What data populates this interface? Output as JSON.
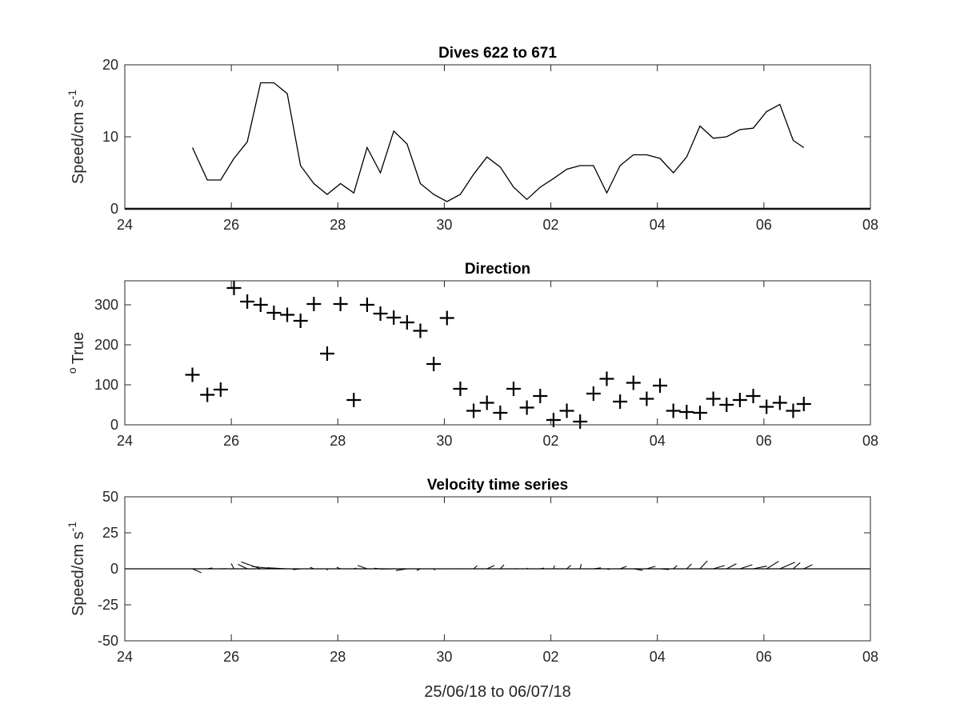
{
  "chart_data": [
    {
      "type": "line",
      "title": "Dives 622 to 671",
      "ylabel": "Speed/cm s",
      "ylabel_sup": "-1",
      "xlabel": "",
      "x_ticks": [
        "24",
        "26",
        "28",
        "30",
        "02",
        "04",
        "06",
        "08"
      ],
      "xlim": [
        24,
        38
      ],
      "y_ticks": [
        "0",
        "10",
        "20"
      ],
      "ylim": [
        0,
        20
      ],
      "grid": false,
      "baseline": 0,
      "series": [
        {
          "x": [
            25.27,
            25.55,
            25.8,
            26.05,
            26.3,
            26.55,
            26.8,
            27.05,
            27.3,
            27.55,
            27.8,
            28.05,
            28.3,
            28.55,
            28.8,
            29.05,
            29.3,
            29.55,
            29.8,
            30.05,
            30.3,
            30.55,
            30.8,
            31.05,
            31.3,
            31.55,
            31.8,
            32.05,
            32.3,
            32.55,
            32.8,
            33.05,
            33.3,
            33.55,
            33.8,
            34.05,
            34.3,
            34.55,
            34.8,
            35.05,
            35.3,
            35.55,
            35.8,
            36.05,
            36.3,
            36.55,
            36.75
          ],
          "y": [
            8.5,
            4.0,
            4.0,
            7.0,
            9.3,
            17.5,
            17.5,
            16.0,
            6.0,
            3.5,
            2.0,
            3.5,
            2.2,
            8.5,
            5.0,
            10.8,
            9.0,
            3.5,
            2.0,
            1.0,
            2.0,
            4.8,
            7.2,
            5.8,
            3.0,
            1.3,
            3.0,
            4.2,
            5.5,
            6.0,
            6.0,
            2.2,
            6.0,
            7.5,
            7.5,
            7.0,
            5.0,
            7.2,
            11.5,
            9.8,
            10.0,
            11.0,
            11.2,
            13.5,
            14.5,
            9.5,
            8.5
          ]
        }
      ]
    },
    {
      "type": "scatter",
      "title": "Direction",
      "ylabel": "True",
      "ylabel_prefix": "o",
      "x_ticks": [
        "24",
        "26",
        "28",
        "30",
        "02",
        "04",
        "06",
        "08"
      ],
      "xlim": [
        24,
        38
      ],
      "y_ticks": [
        "0",
        "100",
        "200",
        "300"
      ],
      "ylim": [
        0,
        360
      ],
      "marker": "+",
      "grid": false,
      "series": [
        {
          "x": [
            25.27,
            25.55,
            25.8,
            26.05,
            26.3,
            26.55,
            26.8,
            27.05,
            27.3,
            27.55,
            27.8,
            28.05,
            28.3,
            28.55,
            28.8,
            29.05,
            29.3,
            29.55,
            29.8,
            30.05,
            30.3,
            30.55,
            30.8,
            31.05,
            31.3,
            31.55,
            31.8,
            32.05,
            32.3,
            32.55,
            32.8,
            33.05,
            33.3,
            33.55,
            33.8,
            34.05,
            34.3,
            34.55,
            34.8,
            35.05,
            35.3,
            35.55,
            35.8,
            36.05,
            36.3,
            36.55,
            36.75
          ],
          "y": [
            125,
            75,
            88,
            342,
            308,
            300,
            280,
            275,
            260,
            302,
            178,
            302,
            62,
            300,
            278,
            268,
            256,
            235,
            152,
            267,
            90,
            35,
            55,
            30,
            90,
            43,
            72,
            12,
            35,
            8,
            78,
            115,
            58,
            105,
            65,
            98,
            35,
            32,
            30,
            65,
            50,
            62,
            72,
            45,
            55,
            35,
            52
          ]
        }
      ]
    },
    {
      "type": "quiver",
      "title": "Velocity time series",
      "ylabel": "Speed/cm s",
      "ylabel_sup": "-1",
      "xlabel": "25/06/18 to 06/07/18",
      "x_ticks": [
        "24",
        "26",
        "28",
        "30",
        "02",
        "04",
        "06",
        "08"
      ],
      "xlim": [
        24,
        38
      ],
      "y_ticks": [
        "50",
        "25",
        "0",
        "-25",
        "-50"
      ],
      "ylim": [
        -50,
        50
      ],
      "baseline": 0,
      "grid": false,
      "description_note": "",
      "series": [
        {
          "x": [
            25.27,
            25.55,
            25.8,
            26.05,
            26.3,
            26.55,
            26.8,
            27.05,
            27.3,
            27.55,
            27.8,
            28.05,
            28.3,
            28.55,
            28.8,
            29.05,
            29.3,
            29.55,
            29.8,
            30.05,
            30.3,
            30.55,
            30.8,
            31.05,
            31.3,
            31.55,
            31.8,
            32.05,
            32.3,
            32.55,
            32.8,
            33.05,
            33.3,
            33.55,
            33.8,
            34.05,
            34.3,
            34.55,
            34.8,
            35.05,
            35.3,
            35.55,
            35.8,
            36.05,
            36.3,
            36.55,
            36.75
          ],
          "speed": [
            8.5,
            4.0,
            4.0,
            7.0,
            9.3,
            17.5,
            17.5,
            16.0,
            6.0,
            3.5,
            2.0,
            3.5,
            2.2,
            8.5,
            5.0,
            10.8,
            9.0,
            3.5,
            2.0,
            1.0,
            2.0,
            4.8,
            7.2,
            5.8,
            3.0,
            1.3,
            3.0,
            4.2,
            5.5,
            6.0,
            6.0,
            2.2,
            6.0,
            7.5,
            7.5,
            7.0,
            5.0,
            7.2,
            11.5,
            9.8,
            10.0,
            11.0,
            11.2,
            13.5,
            14.5,
            9.5,
            8.5
          ],
          "direction_deg_true": [
            125,
            75,
            88,
            342,
            308,
            300,
            280,
            275,
            260,
            302,
            178,
            302,
            62,
            300,
            278,
            268,
            256,
            235,
            152,
            267,
            90,
            35,
            55,
            30,
            90,
            43,
            72,
            12,
            35,
            8,
            78,
            115,
            58,
            105,
            65,
            98,
            35,
            32,
            30,
            65,
            50,
            62,
            72,
            45,
            55,
            35,
            52
          ]
        }
      ]
    }
  ]
}
